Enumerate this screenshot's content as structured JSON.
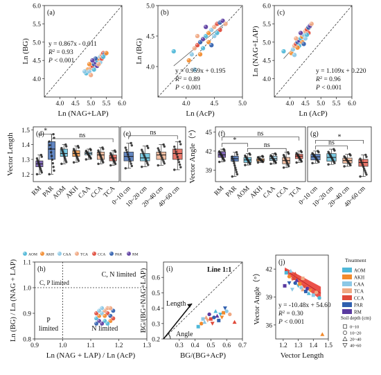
{
  "figure": {
    "colors": {
      "AOM": "#4fb8d8",
      "AKH": "#f28a2c",
      "CAA": "#8cc8e6",
      "TCA": "#f0a882",
      "CCA": "#e04a3a",
      "PAR": "#2f5fae",
      "RM": "#5a3aa0"
    }
  },
  "chart_data": [
    {
      "panel": "a",
      "type": "scatter",
      "xlabel": "Ln (NAG+LAP)",
      "ylabel": "Ln (BG)",
      "xlim": [
        3.5,
        6.0
      ],
      "ylim": [
        3.5,
        6.0
      ],
      "xticks": [
        "4.0",
        "4.5",
        "5.0",
        "5.5",
        "6.0"
      ],
      "yticks": [
        "4.0",
        "4.5",
        "5.0",
        "5.5",
        "6.0"
      ],
      "annotations": [
        "y = 0.867x - 0.011",
        "R",
        "2",
        " = 0.93",
        "P",
        " < 0.001"
      ],
      "points": [
        [
          4.85,
          4.15
        ],
        [
          4.9,
          4.25
        ],
        [
          4.95,
          4.2
        ],
        [
          5.0,
          4.3
        ],
        [
          5.05,
          4.35
        ],
        [
          5.1,
          4.4
        ],
        [
          5.15,
          4.45
        ],
        [
          5.2,
          4.5
        ],
        [
          5.25,
          4.55
        ],
        [
          5.3,
          4.6
        ],
        [
          5.35,
          4.65
        ],
        [
          5.4,
          4.7
        ],
        [
          5.45,
          4.68
        ],
        [
          5.2,
          4.35
        ],
        [
          5.1,
          4.25
        ],
        [
          4.95,
          4.4
        ],
        [
          5.3,
          4.45
        ],
        [
          5.25,
          4.4
        ],
        [
          5.35,
          4.55
        ],
        [
          5.15,
          4.55
        ],
        [
          5.05,
          4.5
        ],
        [
          5.4,
          4.6
        ],
        [
          5.5,
          4.7
        ],
        [
          4.8,
          4.2
        ],
        [
          5.0,
          4.1
        ]
      ]
    },
    {
      "panel": "b",
      "type": "scatter",
      "xlabel": "Ln (AcP)",
      "ylabel": "Ln (BG)",
      "xlim": [
        3.5,
        5.0
      ],
      "ylim": [
        3.5,
        5.0
      ],
      "xticks": [
        "4.0",
        "4.5",
        "5.0"
      ],
      "yticks": [
        "4.0",
        "4.5",
        "5.0"
      ],
      "annotations": [
        "y = 0.959x + 0.195",
        "R",
        "2",
        " = 0.89",
        "P",
        " < 0.001"
      ],
      "points": [
        [
          3.78,
          4.25
        ],
        [
          4.05,
          4.1
        ],
        [
          4.1,
          4.2
        ],
        [
          4.15,
          4.3
        ],
        [
          4.2,
          4.35
        ],
        [
          4.25,
          4.4
        ],
        [
          4.3,
          4.45
        ],
        [
          4.35,
          4.5
        ],
        [
          4.4,
          4.55
        ],
        [
          4.45,
          4.6
        ],
        [
          4.5,
          4.65
        ],
        [
          4.55,
          4.7
        ],
        [
          4.6,
          4.72
        ],
        [
          4.65,
          4.75
        ],
        [
          4.3,
          4.3
        ],
        [
          4.4,
          4.4
        ],
        [
          4.5,
          4.5
        ],
        [
          4.2,
          4.5
        ],
        [
          4.6,
          4.6
        ],
        [
          4.45,
          4.35
        ],
        [
          4.35,
          4.65
        ],
        [
          4.55,
          4.55
        ],
        [
          4.25,
          4.2
        ],
        [
          4.15,
          3.95
        ],
        [
          4.7,
          4.7
        ]
      ]
    },
    {
      "panel": "c",
      "type": "scatter",
      "xlabel": "Ln (AcP)",
      "ylabel": "Ln (NAG+LAP)",
      "xlim": [
        3.5,
        6.0
      ],
      "ylim": [
        3.5,
        6.0
      ],
      "xticks": [
        "4.0",
        "4.5",
        "5.0",
        "5.5",
        "6.0"
      ],
      "yticks": [
        "4.0",
        "4.5",
        "5.0",
        "5.5",
        "6.0"
      ],
      "annotations": [
        "y = 1.109x + 0.220",
        "R",
        "2",
        " = 0.96",
        "P",
        " < 0.001"
      ],
      "points": [
        [
          3.8,
          4.75
        ],
        [
          4.05,
          4.7
        ],
        [
          4.1,
          4.8
        ],
        [
          4.15,
          4.9
        ],
        [
          4.2,
          4.95
        ],
        [
          4.25,
          5.0
        ],
        [
          4.3,
          5.05
        ],
        [
          4.35,
          5.1
        ],
        [
          4.4,
          5.15
        ],
        [
          4.45,
          5.2
        ],
        [
          4.5,
          5.3
        ],
        [
          4.55,
          5.35
        ],
        [
          4.6,
          5.4
        ],
        [
          4.65,
          5.45
        ],
        [
          4.3,
          4.9
        ],
        [
          4.4,
          5.0
        ],
        [
          4.5,
          5.1
        ],
        [
          4.2,
          5.1
        ],
        [
          4.6,
          5.25
        ],
        [
          4.45,
          4.95
        ],
        [
          4.35,
          5.25
        ],
        [
          4.55,
          5.2
        ],
        [
          4.25,
          4.85
        ],
        [
          4.15,
          4.65
        ],
        [
          4.7,
          5.5
        ]
      ]
    },
    {
      "panel": "d",
      "type": "box",
      "ylabel": "Vector Length",
      "ylim": [
        1.15,
        1.52
      ],
      "yticks": [
        "1.2",
        "1.3",
        "1.4",
        "1.5"
      ],
      "categories": [
        "RM",
        "PAR",
        "AOM",
        "AKH",
        "CAA",
        "CCA",
        "TCA"
      ],
      "boxes": [
        [
          1.2,
          1.25,
          1.27,
          1.29,
          1.33
        ],
        [
          1.2,
          1.3,
          1.37,
          1.42,
          1.47
        ],
        [
          1.27,
          1.32,
          1.34,
          1.37,
          1.4
        ],
        [
          1.28,
          1.32,
          1.34,
          1.36,
          1.39
        ],
        [
          1.3,
          1.33,
          1.34,
          1.35,
          1.37
        ],
        [
          1.27,
          1.3,
          1.33,
          1.35,
          1.38
        ],
        [
          1.26,
          1.29,
          1.31,
          1.33,
          1.36
        ]
      ],
      "brackets": [
        {
          "text": "*",
          "from": 0,
          "to": 1,
          "y": 1.47
        },
        {
          "text": "ns",
          "from": 1,
          "to": 6,
          "y": 1.44
        }
      ]
    },
    {
      "panel": "e",
      "type": "box",
      "ylim": [
        1.15,
        1.52
      ],
      "categories": [
        "0~10 cm",
        "10~20 cm",
        "20~40 cm",
        "40~60 cm"
      ],
      "boxes": [
        [
          1.24,
          1.29,
          1.32,
          1.35,
          1.41
        ],
        [
          1.25,
          1.29,
          1.31,
          1.34,
          1.39
        ],
        [
          1.26,
          1.3,
          1.33,
          1.35,
          1.4
        ],
        [
          1.23,
          1.3,
          1.34,
          1.37,
          1.42
        ]
      ],
      "brackets": [
        {
          "text": "ns",
          "from": 0,
          "to": 3,
          "y": 1.46
        }
      ]
    },
    {
      "panel": "f",
      "type": "box",
      "ylabel": "Vector Angle（°）",
      "ylim": [
        37.2,
        45.8
      ],
      "yticks": [
        "39",
        "42",
        "45"
      ],
      "categories": [
        "RM",
        "PAR",
        "AOM",
        "AKH",
        "CAA",
        "CCA",
        "TCA"
      ],
      "boxes": [
        [
          40.3,
          41.0,
          41.4,
          41.9,
          42.3
        ],
        [
          38.0,
          40.4,
          40.8,
          41.2,
          41.8
        ],
        [
          39.8,
          40.2,
          40.6,
          41.0,
          41.6
        ],
        [
          40.2,
          40.4,
          40.6,
          40.8,
          41.2
        ],
        [
          40.0,
          40.5,
          40.8,
          41.2,
          41.6
        ],
        [
          39.4,
          40.0,
          40.5,
          41.0,
          41.8
        ],
        [
          40.2,
          40.8,
          41.2,
          41.5,
          42.0
        ]
      ],
      "brackets": [
        {
          "text": "ns",
          "from": 0,
          "to": 6,
          "y": 44.2
        },
        {
          "text": "*",
          "from": 0,
          "to": 2,
          "y": 43.2
        },
        {
          "text": "ns",
          "from": 2,
          "to": 5,
          "y": 42.4
        }
      ]
    },
    {
      "panel": "g",
      "type": "box",
      "ylim": [
        37.2,
        45.8
      ],
      "categories": [
        "0~10 cm",
        "10~20 cm",
        "20~40 cm",
        "40~60 cm"
      ],
      "boxes": [
        [
          40.1,
          40.6,
          41.1,
          41.5,
          42.0
        ],
        [
          39.9,
          40.4,
          41.0,
          41.6,
          42.3
        ],
        [
          39.6,
          40.1,
          40.5,
          40.9,
          41.5
        ],
        [
          38.0,
          39.6,
          40.2,
          40.7,
          41.4
        ]
      ],
      "brackets": [
        {
          "text": "*",
          "from": 0,
          "to": 3,
          "y": 43.7
        },
        {
          "text": "ns",
          "from": 0,
          "to": 2,
          "y": 42.8
        }
      ]
    },
    {
      "panel": "h",
      "type": "scatter",
      "xlabel": "Ln (NAG + LAP) / Ln (AcP)",
      "ylabel": "Ln (BG) / Ln (NAG + LAP)",
      "xlim": [
        0.9,
        1.3
      ],
      "ylim": [
        0.8,
        1.1
      ],
      "xticks": [
        "0.9",
        "1.0",
        "1.1",
        "1.2",
        "1.3"
      ],
      "yticks": [
        "0.8",
        "0.9",
        "1.0",
        "1.1"
      ],
      "legend": [
        "AOM",
        "AKH",
        "CAA",
        "TCA",
        "CCA",
        "PAR",
        "RM"
      ],
      "quadrants": [
        "C, P limited",
        "C, N limited",
        "P",
        "limited",
        "N limited"
      ],
      "points": [
        [
          1.12,
          0.88
        ],
        [
          1.13,
          0.89
        ],
        [
          1.14,
          0.9
        ],
        [
          1.15,
          0.91
        ],
        [
          1.16,
          0.9
        ],
        [
          1.17,
          0.89
        ],
        [
          1.13,
          0.87
        ],
        [
          1.15,
          0.87
        ],
        [
          1.17,
          0.87
        ],
        [
          1.14,
          0.92
        ],
        [
          1.16,
          0.92
        ],
        [
          1.12,
          0.9
        ],
        [
          1.18,
          0.91
        ],
        [
          1.14,
          0.86
        ],
        [
          1.16,
          0.86
        ],
        [
          1.15,
          0.89
        ],
        [
          1.13,
          0.91
        ],
        [
          1.17,
          0.92
        ],
        [
          1.18,
          0.88
        ],
        [
          1.12,
          0.86
        ]
      ]
    },
    {
      "panel": "i",
      "type": "scatter",
      "xlabel": "BG/(BG+AcP)",
      "ylabel": "BG/(BG+NAG+LAP)",
      "xlim": [
        0.2,
        0.7
      ],
      "ylim": [
        0.2,
        0.7
      ],
      "xticks": [
        "0.3",
        "0.4",
        "0.5",
        "0.6",
        "0.7"
      ],
      "yticks": [
        "0.2",
        "0.3",
        "0.4",
        "0.5",
        "0.6"
      ],
      "annotations": [
        "Line 1:1",
        "Length",
        "Angle"
      ],
      "points": [
        [
          0.42,
          0.28
        ],
        [
          0.44,
          0.3
        ],
        [
          0.46,
          0.31
        ],
        [
          0.48,
          0.32
        ],
        [
          0.5,
          0.33
        ],
        [
          0.52,
          0.34
        ],
        [
          0.54,
          0.35
        ],
        [
          0.56,
          0.36
        ],
        [
          0.58,
          0.37
        ],
        [
          0.6,
          0.38
        ],
        [
          0.47,
          0.34
        ],
        [
          0.51,
          0.3
        ],
        [
          0.55,
          0.32
        ],
        [
          0.49,
          0.36
        ],
        [
          0.53,
          0.38
        ],
        [
          0.57,
          0.34
        ],
        [
          0.45,
          0.33
        ],
        [
          0.62,
          0.36
        ],
        [
          0.65,
          0.31
        ],
        [
          0.59,
          0.4
        ]
      ]
    },
    {
      "panel": "j",
      "type": "scatter",
      "xlabel": "Vector Length",
      "ylabel": "Vector Angle（°）",
      "xlim": [
        1.15,
        1.5
      ],
      "ylim": [
        34.5,
        43.5
      ],
      "xticks": [
        "1.2",
        "1.3",
        "1.4",
        "1.5"
      ],
      "yticks": [
        "36",
        "39",
        "42"
      ],
      "annotations": [
        "y = -10.48x + 54.60",
        "R",
        "2",
        " = 0.30",
        "P",
        " < 0.001"
      ],
      "legend_treatment_title": "Treatment",
      "legend_treatment": [
        "AOM",
        "AKH",
        "CAA",
        "TCA",
        "CCA",
        "PAR",
        "RM"
      ],
      "legend_depth_title": "Soil depth (cm)",
      "legend_depth": [
        "0~10",
        "10~20",
        "20~40",
        "40~60"
      ],
      "points": [
        [
          1.22,
          41.6
        ],
        [
          1.24,
          41.2
        ],
        [
          1.25,
          41.8
        ],
        [
          1.26,
          40.9
        ],
        [
          1.27,
          41.0
        ],
        [
          1.28,
          40.5
        ],
        [
          1.29,
          40.8
        ],
        [
          1.3,
          40.2
        ],
        [
          1.31,
          40.4
        ],
        [
          1.32,
          40.0
        ],
        [
          1.33,
          39.8
        ],
        [
          1.34,
          40.1
        ],
        [
          1.35,
          39.6
        ],
        [
          1.36,
          39.9
        ],
        [
          1.37,
          39.4
        ],
        [
          1.38,
          39.7
        ],
        [
          1.4,
          39.2
        ],
        [
          1.42,
          39.5
        ],
        [
          1.28,
          41.5
        ],
        [
          1.24,
          40.5
        ],
        [
          1.21,
          40.2
        ],
        [
          1.44,
          38.9
        ],
        [
          1.46,
          35.0
        ],
        [
          1.26,
          39.8
        ],
        [
          1.33,
          41.0
        ]
      ]
    }
  ]
}
